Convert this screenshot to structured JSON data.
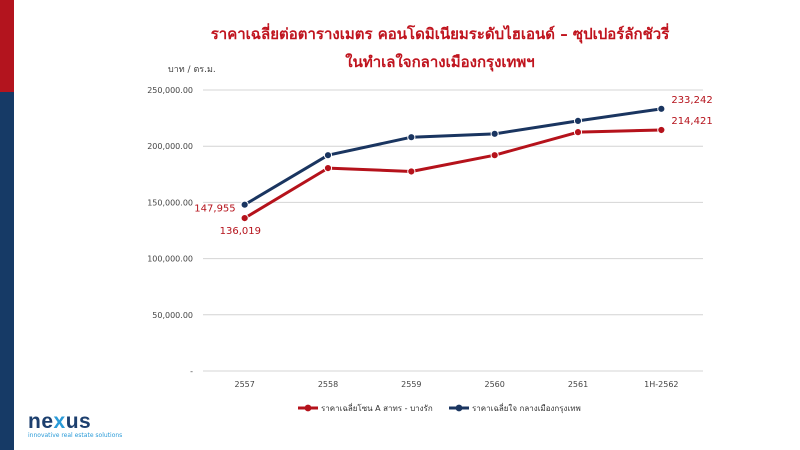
{
  "title_line1": "ราคาเฉลี่ยต่อตารางเมตร คอนโดมิเนียมระดับไฮเอนด์ – ซุปเปอร์ลักชัวรี่",
  "title_line2": "ในทำเลใจกลางเมืองกรุงเทพฯ",
  "logo": {
    "brand_pre": "ne",
    "brand_x": "x",
    "brand_post": "us",
    "tagline": "innovative real estate solutions"
  },
  "chart_data": {
    "type": "line",
    "ylabel": "บาท / ตร.ม.",
    "categories": [
      "2557",
      "2558",
      "2559",
      "2560",
      "2561",
      "1H-2562"
    ],
    "ylim": [
      0,
      250000
    ],
    "yticks": [
      0,
      50000,
      100000,
      150000,
      200000,
      250000
    ],
    "ytick_labels": [
      "-",
      "50,000.00",
      "100,000.00",
      "150,000.00",
      "200,000.00",
      "250,000.00"
    ],
    "grid": true,
    "legend_position": "bottom",
    "series": [
      {
        "name": "ราคาเฉลี่ยโซน A สาทร - บางรัก",
        "color": "#b5121b",
        "values": [
          136019,
          180500,
          177500,
          192000,
          212500,
          214421
        ],
        "data_labels": [
          "136,019",
          "",
          "",
          "",
          "",
          "214,421"
        ]
      },
      {
        "name": "ราคาเฉลี่ยใจ กลางเมืองกรุงเทพ",
        "color": "#1a3560",
        "values": [
          147955,
          192000,
          208000,
          211000,
          222500,
          233242
        ],
        "data_labels": [
          "147,955",
          "",
          "",
          "",
          "",
          "233,242"
        ]
      }
    ]
  }
}
